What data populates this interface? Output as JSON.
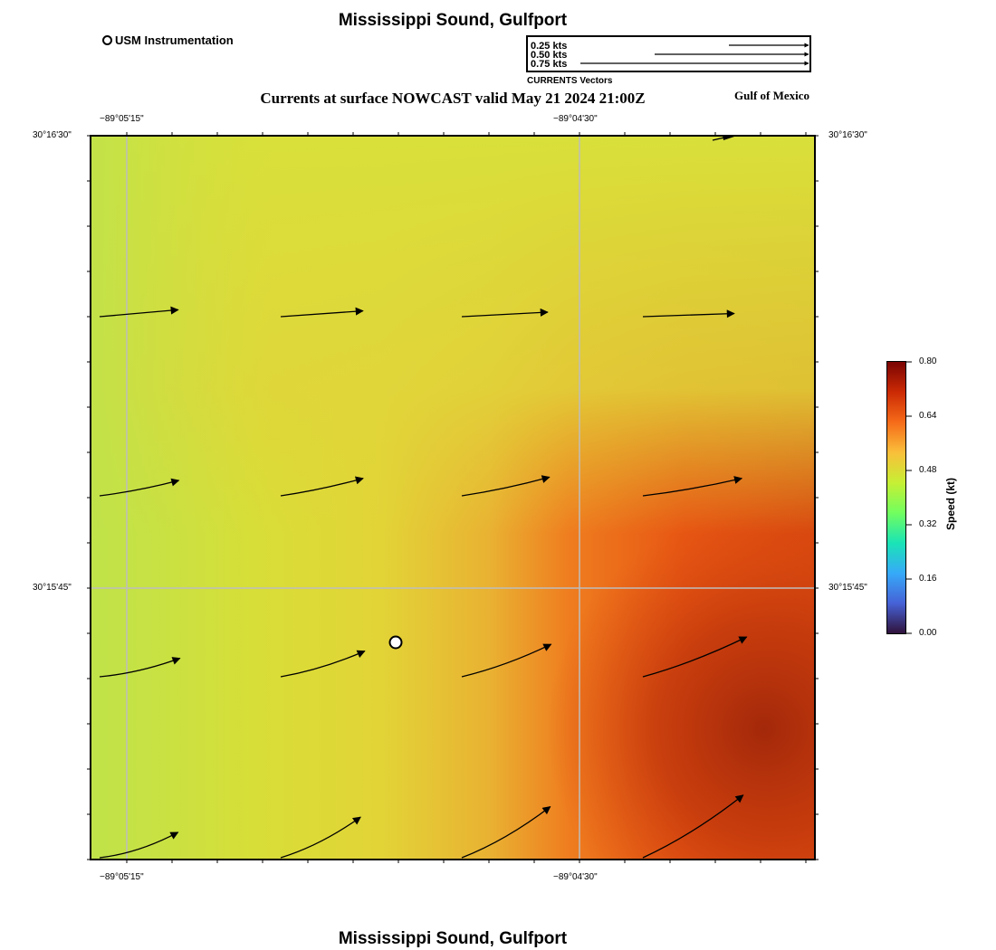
{
  "header": {
    "title": "Mississippi Sound, Gulfport",
    "subtitle": "Currents at surface NOWCAST valid May 21 2024 21:00Z",
    "region": "Gulf of Mexico"
  },
  "footer": {
    "title": "Mississippi Sound, Gulfport"
  },
  "station_legend": {
    "label": "USM Instrumentation",
    "icon": "circle-marker-icon"
  },
  "vector_legend": {
    "caption": "CURRENTS Vectors",
    "entries": [
      {
        "label": "0.25 kts",
        "speed": 0.25
      },
      {
        "label": "0.50 kts",
        "speed": 0.5
      },
      {
        "label": "0.75 kts",
        "speed": 0.75
      }
    ]
  },
  "map": {
    "lon_labels": [
      "−89°05'15\"",
      "−89°04'30\""
    ],
    "lat_labels": [
      "30°16'30\"",
      "30°15'45\""
    ],
    "grid": true,
    "station": {
      "name": "USM Instrumentation"
    }
  },
  "colorbar": {
    "title": "Speed (kt)",
    "ticks": [
      "0.80",
      "0.64",
      "0.48",
      "0.32",
      "0.16",
      "0.00"
    ],
    "range": [
      0,
      0.8
    ],
    "colors": [
      "#30123b",
      "#4662d7",
      "#36aaf9",
      "#1ae4b6",
      "#72fe5e",
      "#c7ef34",
      "#fabf3a",
      "#f66b19",
      "#cb2a04",
      "#7a0403"
    ]
  },
  "chart_data": {
    "type": "vector_field",
    "variable": "Currents at surface",
    "units": "kt",
    "speed_range": [
      0,
      0.8
    ],
    "vectors": [
      {
        "row": 1,
        "col": 1,
        "speed": 0.44,
        "direction_deg": 85
      },
      {
        "row": 1,
        "col": 2,
        "speed": 0.46,
        "direction_deg": 86
      },
      {
        "row": 1,
        "col": 3,
        "speed": 0.48,
        "direction_deg": 87
      },
      {
        "row": 1,
        "col": 4,
        "speed": 0.51,
        "direction_deg": 88
      },
      {
        "row": 2,
        "col": 1,
        "speed": 0.45,
        "direction_deg": 79
      },
      {
        "row": 2,
        "col": 2,
        "speed": 0.47,
        "direction_deg": 78
      },
      {
        "row": 2,
        "col": 3,
        "speed": 0.5,
        "direction_deg": 78
      },
      {
        "row": 2,
        "col": 4,
        "speed": 0.56,
        "direction_deg": 80
      },
      {
        "row": 3,
        "col": 1,
        "speed": 0.46,
        "direction_deg": 77
      },
      {
        "row": 3,
        "col": 2,
        "speed": 0.49,
        "direction_deg": 73
      },
      {
        "row": 3,
        "col": 3,
        "speed": 0.53,
        "direction_deg": 70
      },
      {
        "row": 3,
        "col": 4,
        "speed": 0.62,
        "direction_deg": 69
      },
      {
        "row": 4,
        "col": 1,
        "speed": 0.46,
        "direction_deg": 72
      },
      {
        "row": 4,
        "col": 2,
        "speed": 0.5,
        "direction_deg": 63
      },
      {
        "row": 4,
        "col": 3,
        "speed": 0.57,
        "direction_deg": 60
      },
      {
        "row": 4,
        "col": 4,
        "speed": 0.66,
        "direction_deg": 58
      }
    ]
  }
}
